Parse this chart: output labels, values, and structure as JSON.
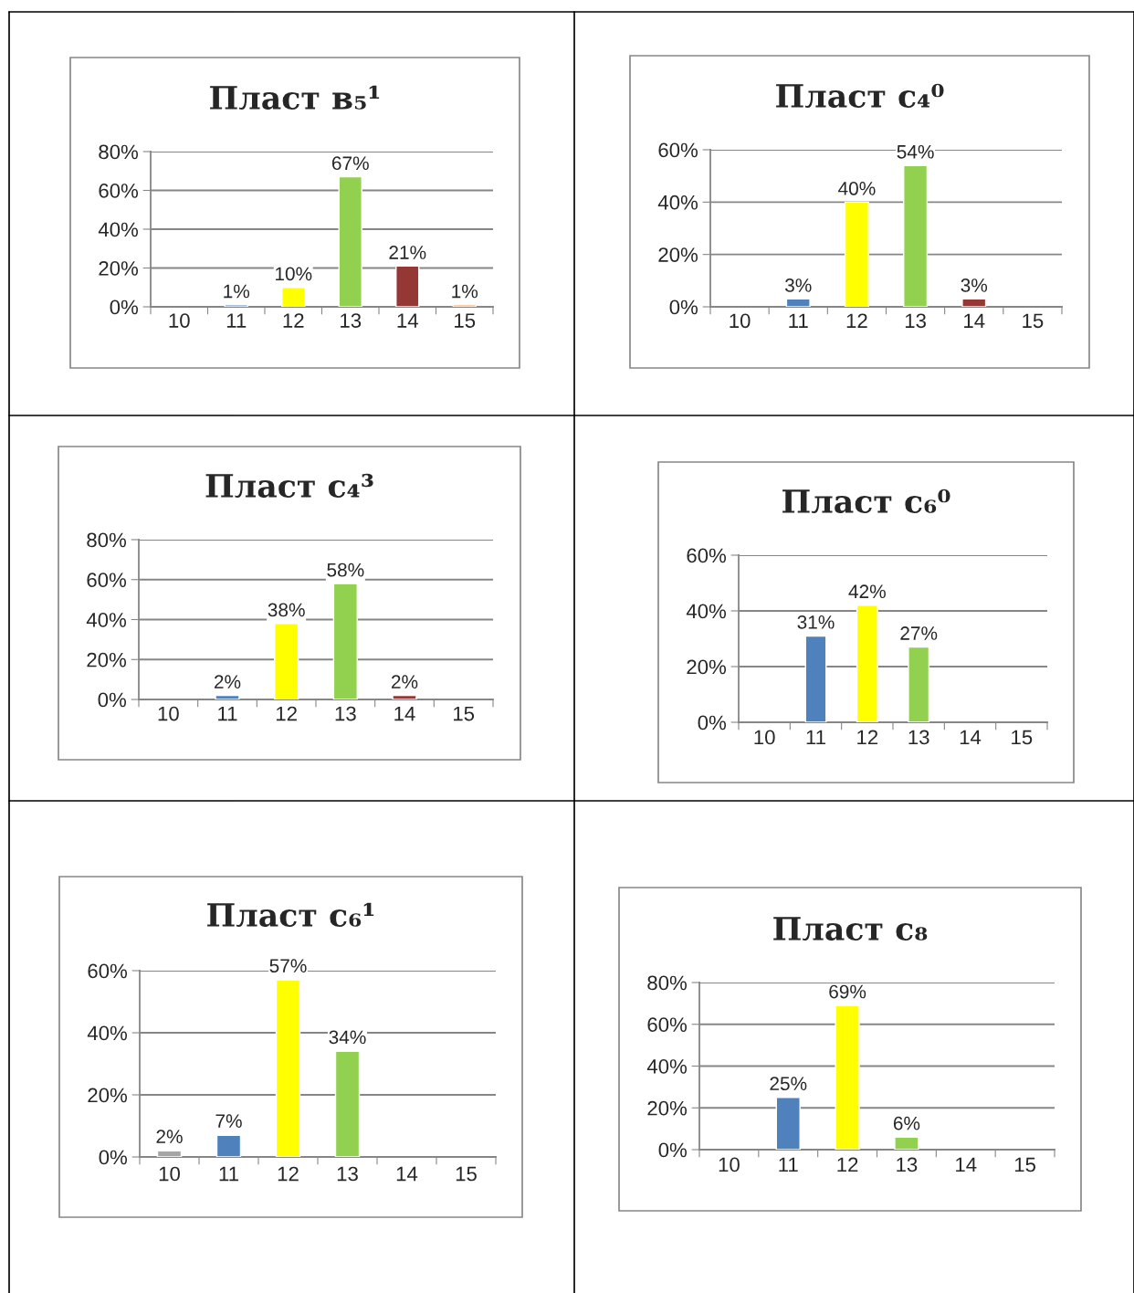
{
  "chart_data": [
    {
      "type": "bar",
      "title": "Пласт в₅¹",
      "categories": [
        "10",
        "11",
        "12",
        "13",
        "14",
        "15"
      ],
      "values": [
        null,
        1,
        10,
        67,
        21,
        1
      ],
      "colors": [
        "#a5a5a5",
        "#4f81bd",
        "#ffff00",
        "#92d050",
        "#953735",
        "#f79646"
      ],
      "value_labels": [
        null,
        "1%",
        "10%",
        "67%",
        "21%",
        "1%"
      ],
      "ylim": [
        0,
        80
      ],
      "yticks": [
        {
          "value": 0,
          "label": "0%"
        },
        {
          "value": 20,
          "label": "20%"
        },
        {
          "value": 40,
          "label": "40%"
        },
        {
          "value": 60,
          "label": "60%"
        },
        {
          "value": 80,
          "label": "80%"
        }
      ],
      "grid": "y",
      "legend": false
    },
    {
      "type": "bar",
      "title": "Пласт с₄⁰",
      "categories": [
        "10",
        "11",
        "12",
        "13",
        "14",
        "15"
      ],
      "values": [
        null,
        3,
        40,
        54,
        3,
        null
      ],
      "colors": [
        "#a5a5a5",
        "#4f81bd",
        "#ffff00",
        "#92d050",
        "#953735",
        "#f79646"
      ],
      "value_labels": [
        null,
        "3%",
        "40%",
        "54%",
        "3%",
        null
      ],
      "ylim": [
        0,
        60
      ],
      "yticks": [
        {
          "value": 0,
          "label": "0%"
        },
        {
          "value": 20,
          "label": "20%"
        },
        {
          "value": 40,
          "label": "40%"
        },
        {
          "value": 60,
          "label": "60%"
        }
      ],
      "grid": "y",
      "legend": false
    },
    {
      "type": "bar",
      "title": "Пласт с₄³",
      "categories": [
        "10",
        "11",
        "12",
        "13",
        "14",
        "15"
      ],
      "values": [
        null,
        2,
        38,
        58,
        2,
        null
      ],
      "colors": [
        "#a5a5a5",
        "#4f81bd",
        "#ffff00",
        "#92d050",
        "#953735",
        "#f79646"
      ],
      "value_labels": [
        null,
        "2%",
        "38%",
        "58%",
        "2%",
        null
      ],
      "ylim": [
        0,
        80
      ],
      "yticks": [
        {
          "value": 0,
          "label": "0%"
        },
        {
          "value": 20,
          "label": "20%"
        },
        {
          "value": 40,
          "label": "40%"
        },
        {
          "value": 60,
          "label": "60%"
        },
        {
          "value": 80,
          "label": "80%"
        }
      ],
      "grid": "y",
      "legend": false
    },
    {
      "type": "bar",
      "title": "Пласт с₆⁰",
      "categories": [
        "10",
        "11",
        "12",
        "13",
        "14",
        "15"
      ],
      "values": [
        null,
        31,
        42,
        27,
        null,
        null
      ],
      "colors": [
        "#a5a5a5",
        "#4f81bd",
        "#ffff00",
        "#92d050",
        "#953735",
        "#f79646"
      ],
      "value_labels": [
        null,
        "31%",
        "42%",
        "27%",
        null,
        null
      ],
      "ylim": [
        0,
        60
      ],
      "yticks": [
        {
          "value": 0,
          "label": "0%"
        },
        {
          "value": 20,
          "label": "20%"
        },
        {
          "value": 40,
          "label": "40%"
        },
        {
          "value": 60,
          "label": "60%"
        }
      ],
      "grid": "y",
      "legend": false
    },
    {
      "type": "bar",
      "title": "Пласт с₆¹",
      "categories": [
        "10",
        "11",
        "12",
        "13",
        "14",
        "15"
      ],
      "values": [
        2,
        7,
        57,
        34,
        null,
        null
      ],
      "colors": [
        "#a5a5a5",
        "#4f81bd",
        "#ffff00",
        "#92d050",
        "#953735",
        "#f79646"
      ],
      "value_labels": [
        "2%",
        "7%",
        "57%",
        "34%",
        null,
        null
      ],
      "ylim": [
        0,
        60
      ],
      "yticks": [
        {
          "value": 0,
          "label": "0%"
        },
        {
          "value": 20,
          "label": "20%"
        },
        {
          "value": 40,
          "label": "40%"
        },
        {
          "value": 60,
          "label": "60%"
        }
      ],
      "grid": "y",
      "legend": false
    },
    {
      "type": "bar",
      "title": "Пласт с₈",
      "categories": [
        "10",
        "11",
        "12",
        "13",
        "14",
        "15"
      ],
      "values": [
        null,
        25,
        69,
        6,
        null,
        null
      ],
      "colors": [
        "#a5a5a5",
        "#4f81bd",
        "#ffff00",
        "#92d050",
        "#953735",
        "#f79646"
      ],
      "value_labels": [
        null,
        "25%",
        "69%",
        "6%",
        null,
        null
      ],
      "ylim": [
        0,
        80
      ],
      "yticks": [
        {
          "value": 0,
          "label": "0%"
        },
        {
          "value": 20,
          "label": "20%"
        },
        {
          "value": 40,
          "label": "40%"
        },
        {
          "value": 60,
          "label": "60%"
        },
        {
          "value": 80,
          "label": "80%"
        }
      ],
      "grid": "y",
      "legend": false
    }
  ]
}
